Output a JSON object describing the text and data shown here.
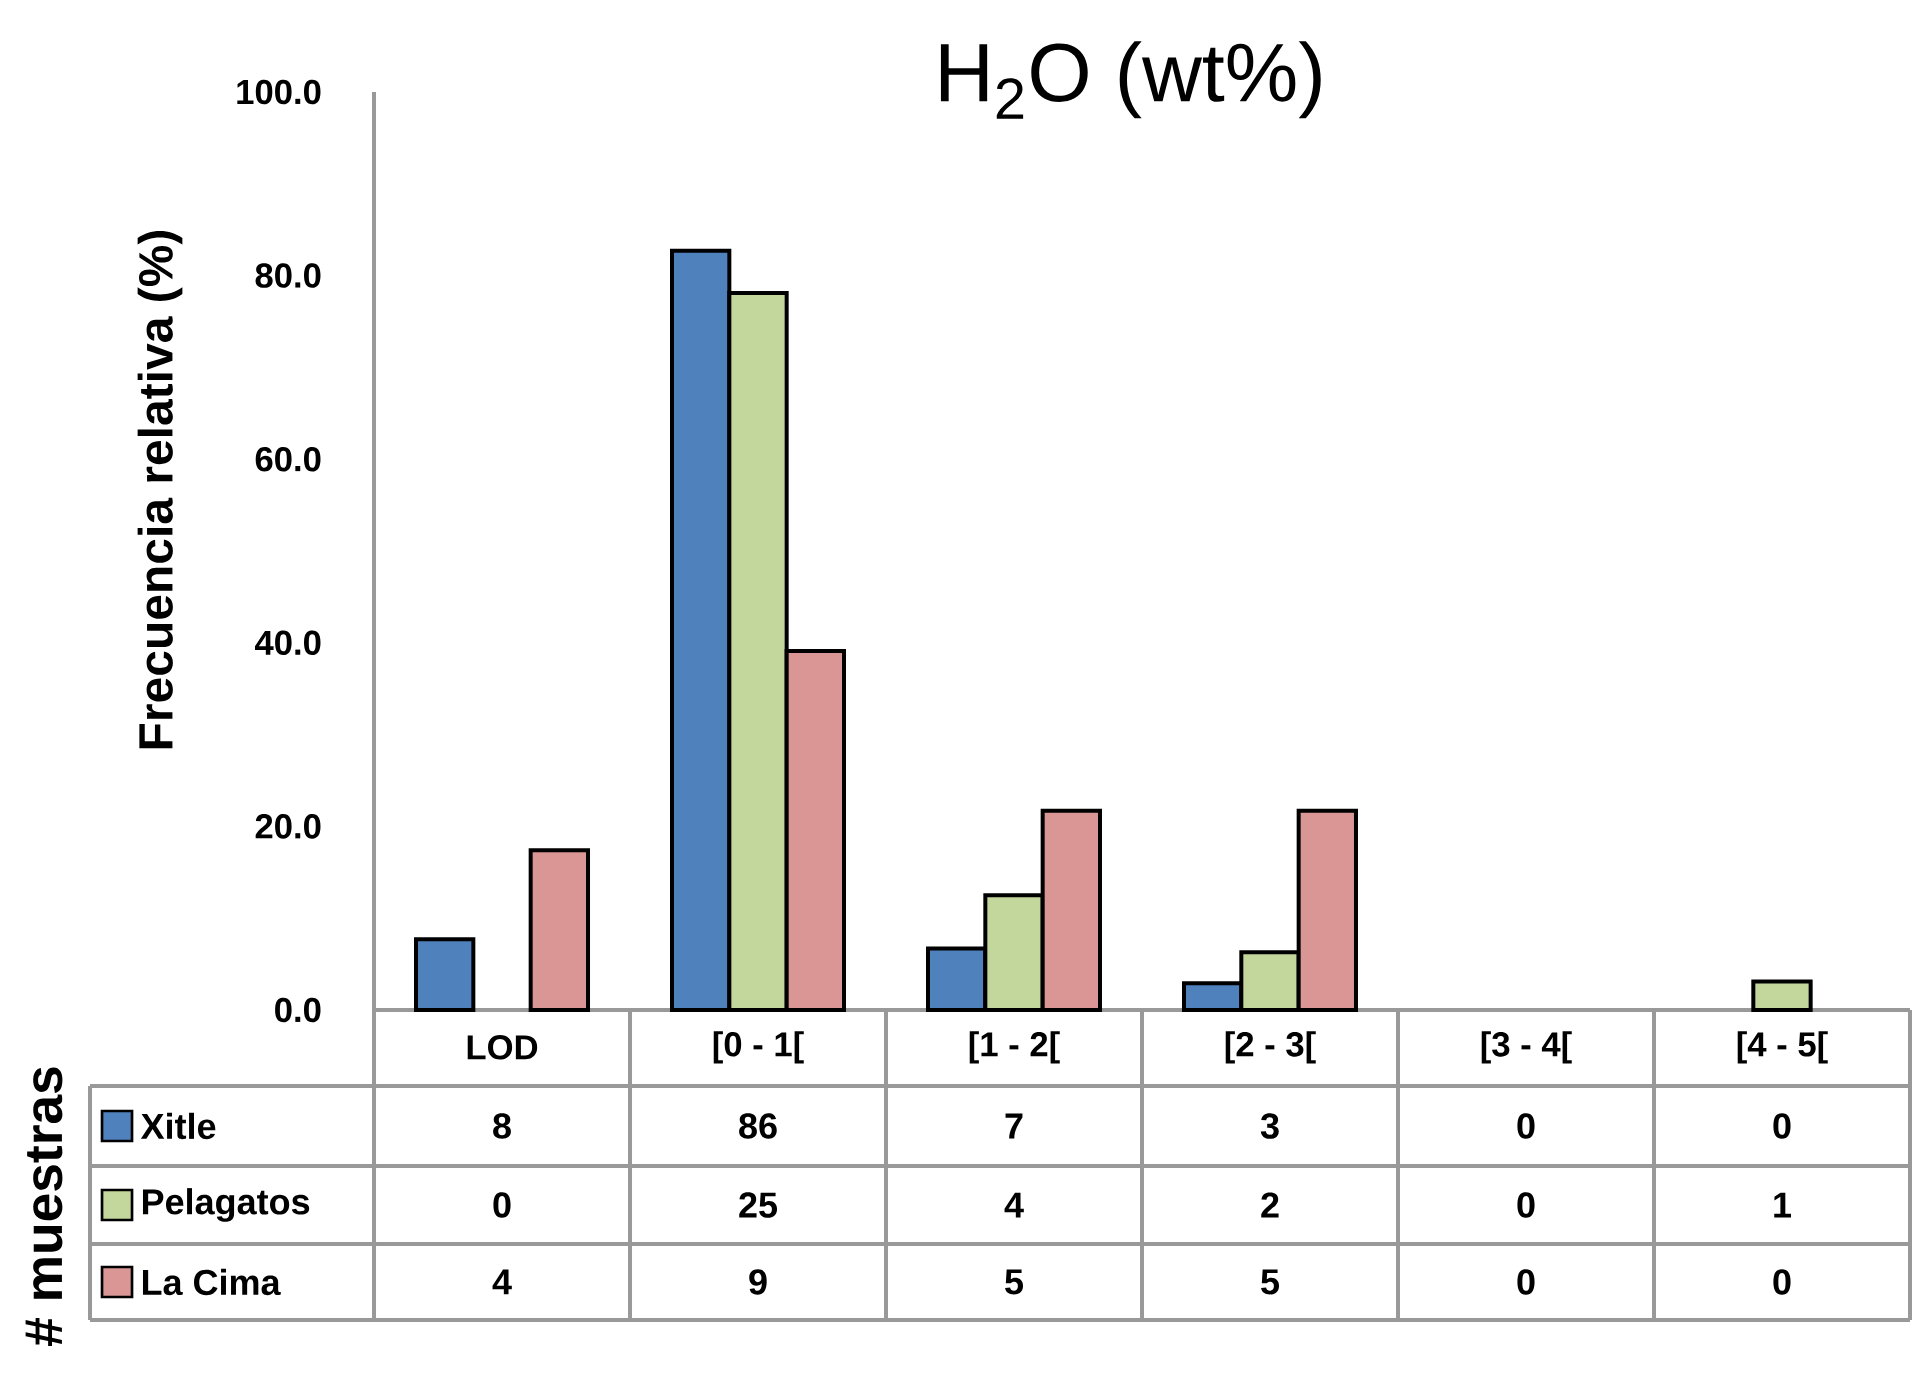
{
  "chart_data": {
    "type": "bar",
    "title": "H$_{2}$O (wt%)",
    "ylabel": "Frecuencia relativa (%)",
    "categories": [
      "LOD",
      "[0 - 1[",
      "[1 - 2[",
      "[2 - 3[",
      "[3 - 4[",
      "[4 - 5["
    ],
    "series": [
      {
        "name": "Xitle",
        "color": "#4f81bd",
        "values": [
          7.7,
          82.7,
          6.7,
          2.9,
          0,
          0
        ]
      },
      {
        "name": "Pelagatos",
        "color": "#c3d69b",
        "values": [
          0,
          78.1,
          12.5,
          6.3,
          0,
          3.1
        ]
      },
      {
        "name": "La Cima",
        "color": "#d99694",
        "values": [
          17.4,
          39.1,
          21.7,
          21.7,
          0,
          0
        ]
      }
    ],
    "ylim": [
      0,
      100
    ],
    "yticks": [
      {
        "value": 0,
        "label": "0.0"
      },
      {
        "value": 20,
        "label": "20.0"
      },
      {
        "value": 40,
        "label": "40.0"
      },
      {
        "value": 60,
        "label": "60.0"
      },
      {
        "value": 80,
        "label": "80.0"
      },
      {
        "value": 100,
        "label": "100.0"
      }
    ],
    "grid": false,
    "legend": "bottom",
    "annotations": [
      "# muestras",
      "8",
      "86",
      "7",
      "3",
      "0",
      "0",
      "0",
      "25",
      "4",
      "2",
      "0",
      "1",
      "4",
      "9",
      "5",
      "5",
      "0",
      "0"
    ]
  }
}
